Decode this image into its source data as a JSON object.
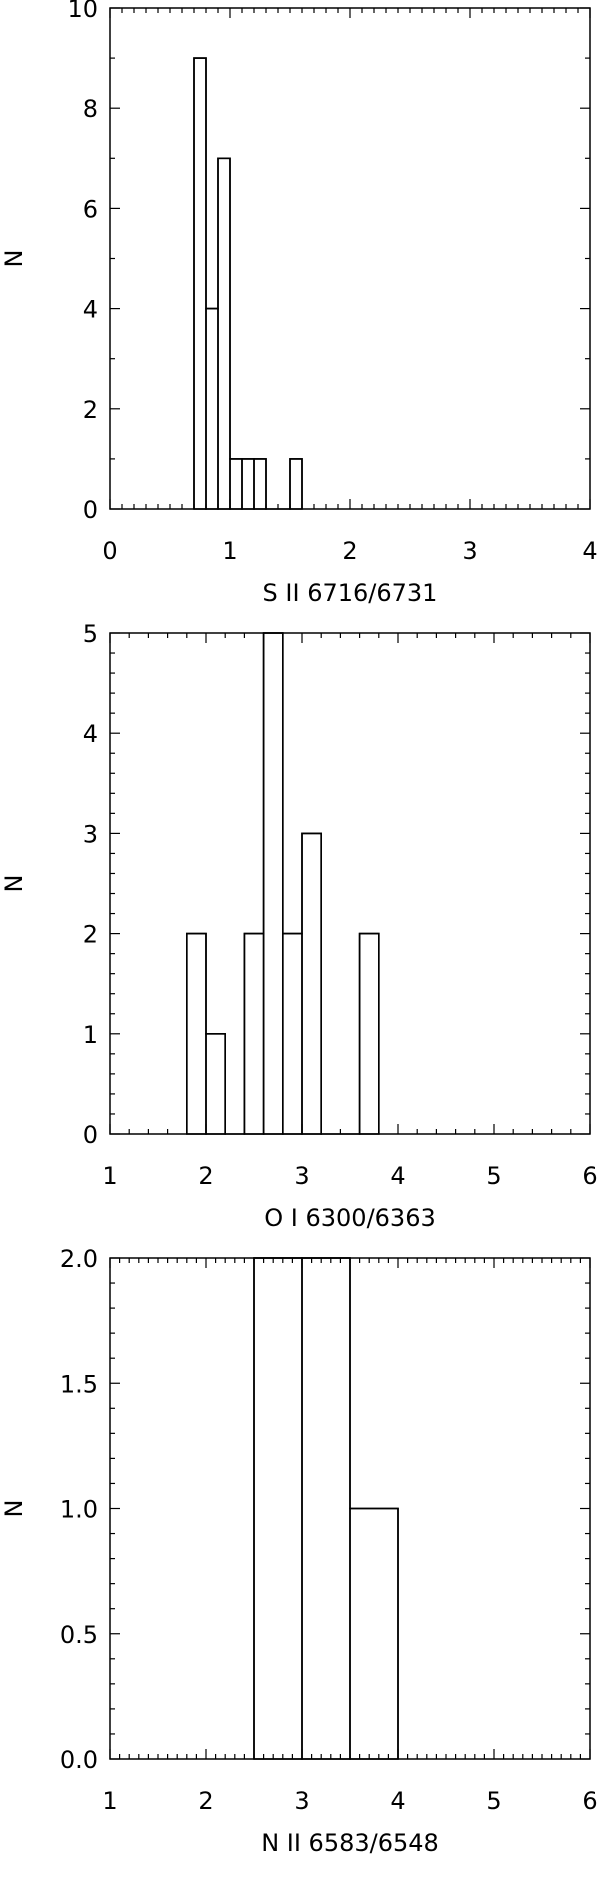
{
  "chart_data": [
    {
      "type": "bar",
      "subtype": "histogram-step",
      "xlabel": "S II 6716/6731",
      "ylabel": "N",
      "xlim": [
        0,
        4
      ],
      "ylim": [
        0,
        10
      ],
      "xticks": [
        "0",
        "1",
        "2",
        "3",
        "4"
      ],
      "xtick_values": [
        0,
        1,
        2,
        3,
        4
      ],
      "yticks": [
        "0",
        "2",
        "4",
        "6",
        "8",
        "10"
      ],
      "ytick_values": [
        0,
        2,
        4,
        6,
        8,
        10
      ],
      "x_minor_step": 0.1,
      "y_minor_step": 1,
      "bin_edges": [
        0.7,
        0.8,
        0.9,
        1.0,
        1.1,
        1.2,
        1.3,
        1.4,
        1.5,
        1.6
      ],
      "values": [
        9,
        4,
        7,
        1,
        1,
        1,
        0,
        0,
        1
      ],
      "grid": false
    },
    {
      "type": "bar",
      "subtype": "histogram-step",
      "xlabel": "O I 6300/6363",
      "ylabel": "N",
      "xlim": [
        1,
        6
      ],
      "ylim": [
        0,
        5
      ],
      "xticks": [
        "1",
        "2",
        "3",
        "4",
        "5",
        "6"
      ],
      "xtick_values": [
        1,
        2,
        3,
        4,
        5,
        6
      ],
      "yticks": [
        "0",
        "1",
        "2",
        "3",
        "4",
        "5"
      ],
      "ytick_values": [
        0,
        1,
        2,
        3,
        4,
        5
      ],
      "x_minor_step": 0.2,
      "y_minor_step": 0.2,
      "bin_edges": [
        1.8,
        2.0,
        2.2,
        2.4,
        2.6,
        2.8,
        3.0,
        3.2,
        3.4,
        3.6,
        3.8
      ],
      "values": [
        2,
        1,
        0,
        2,
        5,
        2,
        3,
        0,
        0,
        2
      ],
      "grid": false
    },
    {
      "type": "bar",
      "subtype": "histogram-step",
      "xlabel": "N II 6583/6548",
      "ylabel": "N",
      "xlim": [
        1,
        6
      ],
      "ylim": [
        0,
        2
      ],
      "xticks": [
        "1",
        "2",
        "3",
        "4",
        "5",
        "6"
      ],
      "xtick_values": [
        1,
        2,
        3,
        4,
        5,
        6
      ],
      "yticks": [
        "0.0",
        "0.5",
        "1.0",
        "1.5",
        "2.0"
      ],
      "ytick_values": [
        0,
        0.5,
        1,
        1.5,
        2
      ],
      "x_minor_step": 0.1,
      "y_minor_step": 0.1,
      "bin_edges": [
        2.5,
        3.0,
        3.5,
        4.0
      ],
      "values": [
        2,
        2,
        1
      ],
      "grid": false
    }
  ]
}
